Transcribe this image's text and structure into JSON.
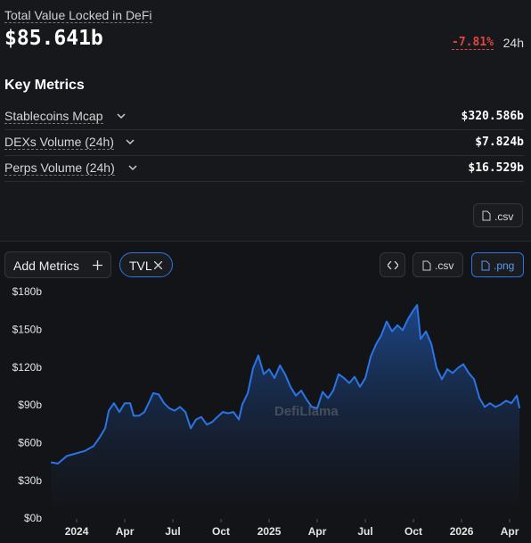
{
  "header": {
    "title": "Total Value Locked in DeFi",
    "value": "$85.641b",
    "change": "-7.81%",
    "period": "24h"
  },
  "key_metrics": {
    "title": "Key Metrics",
    "rows": [
      {
        "label": "Stablecoins Mcap",
        "value": "$320.586b"
      },
      {
        "label": "DEXs Volume (24h)",
        "value": "$7.824b"
      },
      {
        "label": "Perps Volume (24h)",
        "value": "$16.529b"
      }
    ]
  },
  "buttons": {
    "csv_top": ".csv",
    "add_metrics": "Add Metrics",
    "csv": ".csv",
    "png": ".png"
  },
  "chart_data": {
    "type": "area",
    "watermark": "DefiLlama",
    "x": [
      2023.866,
      2023.903,
      2023.949,
      2023.995,
      2024.042,
      2024.088,
      2024.12,
      2024.148,
      2024.167,
      2024.194,
      2024.222,
      2024.25,
      2024.278,
      2024.296,
      2024.324,
      2024.352,
      2024.38,
      2024.398,
      2024.426,
      2024.454,
      2024.481,
      2024.509,
      2024.537,
      2024.565,
      2024.593,
      2024.62,
      2024.648,
      2024.676,
      2024.704,
      2024.731,
      2024.759,
      2024.787,
      2024.815,
      2024.843,
      2024.861,
      2024.889,
      2024.917,
      2024.944,
      2024.972,
      2025.0,
      2025.028,
      2025.056,
      2025.083,
      2025.111,
      2025.139,
      2025.167,
      2025.194,
      2025.222,
      2025.25,
      2025.278,
      2025.306,
      2025.333,
      2025.361,
      2025.389,
      2025.417,
      2025.444,
      2025.472,
      2025.5,
      2025.528,
      2025.556,
      2025.583,
      2025.611,
      2025.639,
      2025.667,
      2025.694,
      2025.722,
      2025.75,
      2025.769,
      2025.787,
      2025.815,
      2025.843,
      2025.87,
      2025.898,
      2025.926,
      2025.954,
      2025.981,
      2026.009,
      2026.037,
      2026.065,
      2026.093,
      2026.12,
      2026.148,
      2026.176,
      2026.204,
      2026.231,
      2026.259,
      2026.287,
      2026.301
    ],
    "series": [
      {
        "name": "TVL",
        "color": "#2a74e6",
        "values": [
          45,
          44,
          50,
          52,
          54,
          58,
          65,
          72,
          86,
          92,
          85,
          92,
          92,
          82,
          82,
          85,
          94,
          100,
          99,
          92,
          88,
          86,
          89,
          85,
          72,
          79,
          81,
          75,
          77,
          81,
          85,
          84,
          85,
          79,
          91,
          100,
          120,
          130,
          115,
          119,
          112,
          122,
          115,
          105,
          98,
          102,
          95,
          89,
          88,
          101,
          96,
          102,
          115,
          112,
          108,
          113,
          105,
          112,
          129,
          139,
          146,
          157,
          149,
          154,
          150,
          159,
          166,
          170,
          143,
          149,
          139,
          120,
          111,
          119,
          116,
          120,
          123,
          116,
          111,
          96,
          89,
          92,
          89,
          91,
          94,
          92,
          98,
          88
        ]
      }
    ],
    "xlim": [
      2023.81,
      2026.333
    ],
    "xticks": [
      {
        "value": 2024,
        "label": "2024"
      },
      {
        "value": 2024.25,
        "label": "Apr"
      },
      {
        "value": 2024.5,
        "label": "Jul"
      },
      {
        "value": 2024.75,
        "label": "Oct"
      },
      {
        "value": 2025,
        "label": "2025"
      },
      {
        "value": 2025.25,
        "label": "Apr"
      },
      {
        "value": 2025.5,
        "label": "Jul"
      },
      {
        "value": 2025.75,
        "label": "Oct"
      },
      {
        "value": 2026,
        "label": "2026"
      },
      {
        "value": 2026.25,
        "label": "Apr"
      }
    ],
    "ylim": [
      0,
      180
    ],
    "yticks": [
      {
        "value": 0,
        "label": "$0b"
      },
      {
        "value": 30,
        "label": "$30b"
      },
      {
        "value": 60,
        "label": "$60b"
      },
      {
        "value": 90,
        "label": "$90b"
      },
      {
        "value": 120,
        "label": "$120b"
      },
      {
        "value": 150,
        "label": "$150b"
      },
      {
        "value": 180,
        "label": "$180b"
      }
    ]
  }
}
